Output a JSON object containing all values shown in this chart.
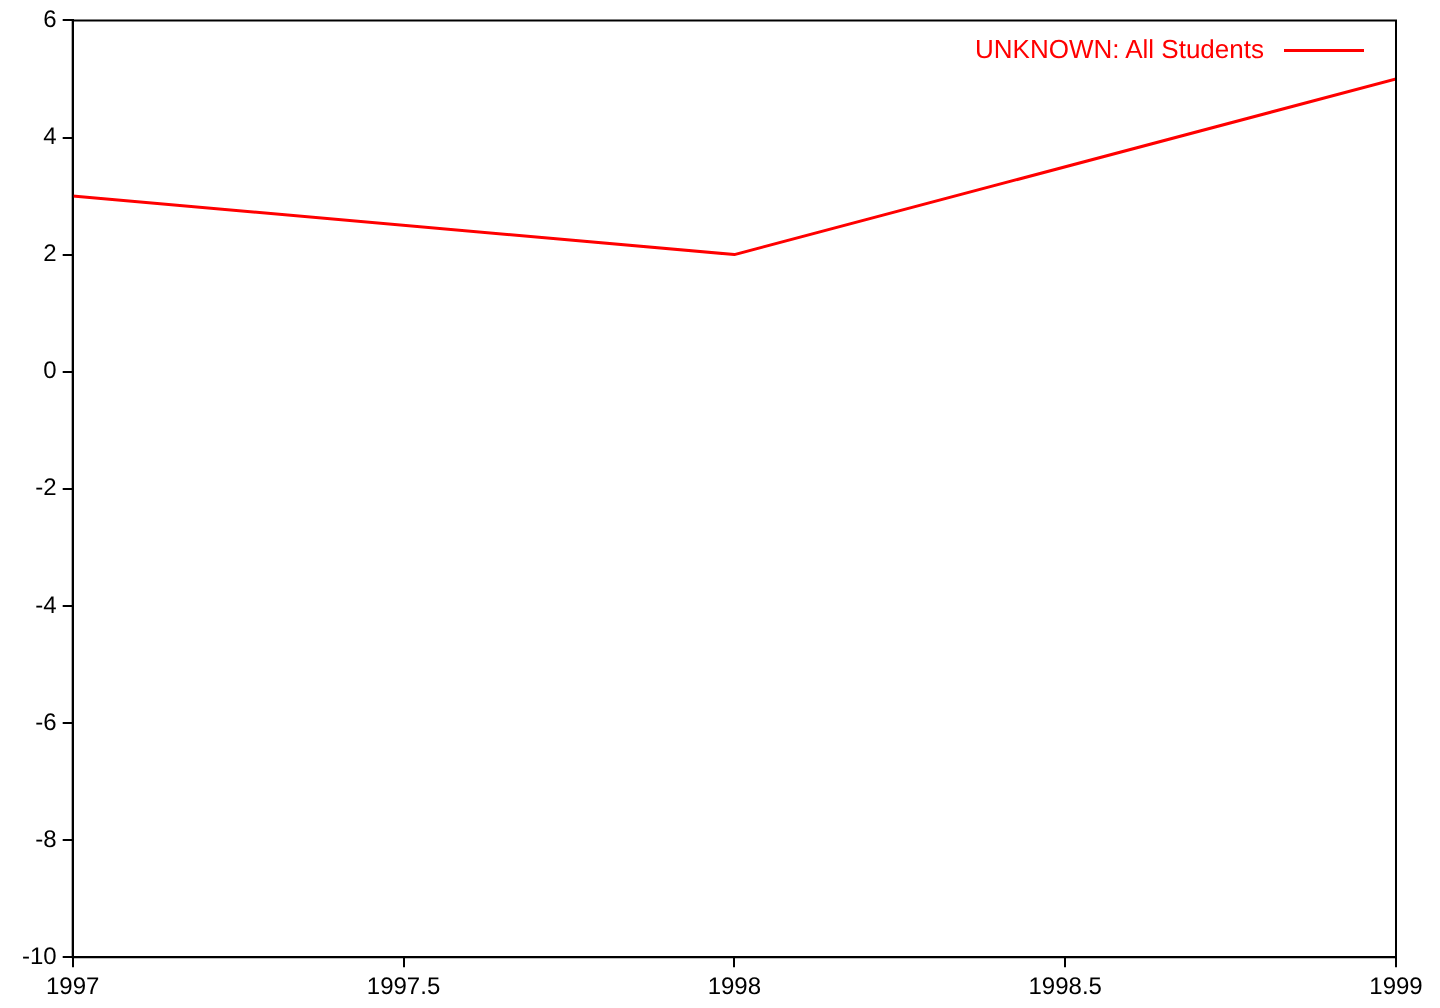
{
  "chart_data": {
    "type": "line",
    "x": [
      1997,
      1998,
      1999
    ],
    "series": [
      {
        "name": "UNKNOWN: All Students",
        "color": "#ff0000",
        "values": [
          3,
          2,
          5
        ]
      }
    ],
    "xlim": [
      1997,
      1999
    ],
    "xticks": [
      1997,
      1997.5,
      1998,
      1998.5,
      1999
    ],
    "ylim": [
      -10,
      6
    ],
    "yticks": [
      -10,
      -8,
      -6,
      -4,
      -2,
      0,
      2,
      4,
      6
    ],
    "grid": false,
    "legend": "top right",
    "marker": "none",
    "line_style": "solid"
  }
}
